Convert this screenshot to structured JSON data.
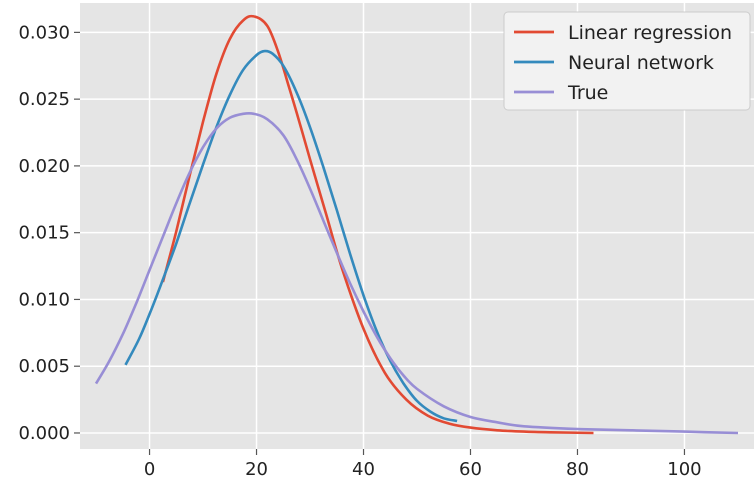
{
  "chart_data": {
    "type": "line",
    "title": "",
    "xlabel": "",
    "ylabel": "",
    "xlim": [
      -13,
      113
    ],
    "ylim": [
      -0.0012,
      0.0322
    ],
    "x_ticks": [
      0,
      20,
      40,
      60,
      80,
      100
    ],
    "y_ticks": [
      0.0,
      0.005,
      0.01,
      0.015,
      0.02,
      0.025,
      0.03
    ],
    "x_tick_labels": [
      "0",
      "20",
      "40",
      "60",
      "80",
      "100"
    ],
    "y_tick_labels": [
      "0.000",
      "0.005",
      "0.010",
      "0.015",
      "0.020",
      "0.025",
      "0.030"
    ],
    "grid": true,
    "legend_position": "top-right",
    "background": "#e5e5e5",
    "series": [
      {
        "name": "Linear regression",
        "color": "#e24a33",
        "x": [
          2.5,
          5,
          7.5,
          10,
          12.5,
          15,
          17.5,
          19.5,
          22,
          24,
          26,
          28,
          30,
          33,
          36,
          40,
          44,
          48,
          52,
          56,
          60,
          65,
          70,
          75,
          83
        ],
        "y": [
          0.0113,
          0.0151,
          0.0193,
          0.0233,
          0.0269,
          0.0295,
          0.0309,
          0.0312,
          0.0305,
          0.0286,
          0.026,
          0.0233,
          0.0205,
          0.0164,
          0.0123,
          0.0078,
          0.0045,
          0.0025,
          0.0013,
          0.0007,
          0.0004,
          0.0002,
          0.0001,
          5e-05,
          0.0
        ]
      },
      {
        "name": "Neural network",
        "color": "#348abd",
        "x": [
          -4.5,
          -2,
          0,
          2.5,
          5,
          7.5,
          10,
          12.5,
          15,
          17.5,
          20,
          21.5,
          23,
          25,
          27.5,
          30,
          32.5,
          35,
          37.5,
          40,
          42.5,
          45,
          47.5,
          50,
          52.5,
          55,
          57.5
        ],
        "y": [
          0.0051,
          0.007,
          0.0089,
          0.0115,
          0.0142,
          0.0172,
          0.0201,
          0.0229,
          0.0253,
          0.0272,
          0.0283,
          0.0286,
          0.0284,
          0.0275,
          0.0255,
          0.0229,
          0.0199,
          0.0167,
          0.0134,
          0.0103,
          0.0076,
          0.0054,
          0.0037,
          0.0024,
          0.0016,
          0.0011,
          0.0009
        ]
      },
      {
        "name": "True",
        "color": "#988ed5",
        "x": [
          -10,
          -7.5,
          -5,
          -2.5,
          0,
          2.5,
          5,
          7.5,
          10,
          12.5,
          15,
          17.5,
          19.5,
          22,
          25,
          27.5,
          30,
          32.5,
          35,
          37.5,
          40,
          42.5,
          45,
          47.5,
          50,
          55,
          60,
          65,
          70,
          80,
          90,
          100,
          110
        ],
        "y": [
          0.0037,
          0.0054,
          0.0074,
          0.0097,
          0.0122,
          0.0147,
          0.0172,
          0.0195,
          0.0214,
          0.0228,
          0.0236,
          0.0239,
          0.0239,
          0.0235,
          0.0223,
          0.0205,
          0.0183,
          0.0159,
          0.0135,
          0.0112,
          0.0091,
          0.0072,
          0.0056,
          0.0043,
          0.0033,
          0.002,
          0.0012,
          0.0008,
          0.0005,
          0.0003,
          0.0002,
          0.0001,
          0.0
        ]
      }
    ]
  }
}
